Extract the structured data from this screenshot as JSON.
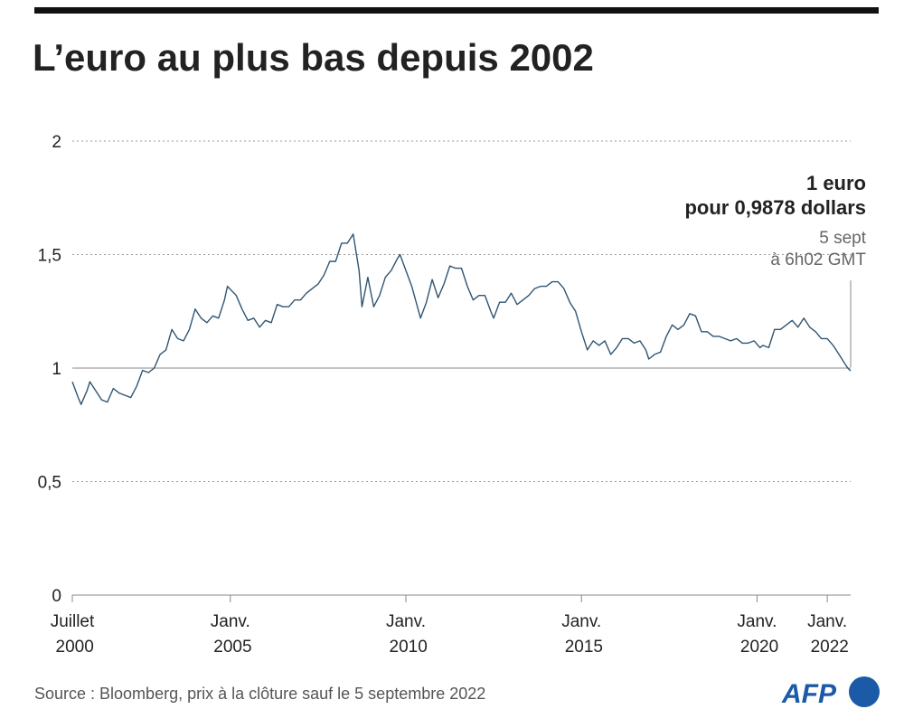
{
  "chart_data": {
    "type": "line",
    "title": "L’euro au plus bas depuis 2002",
    "source": "Source : Bloomberg, prix à la clôture sauf le 5 septembre 2022",
    "logo": "AFP",
    "annotation": {
      "title": [
        "1 euro",
        "pour 0,9878 dollars"
      ],
      "note": [
        "5 sept",
        "à 6h02 GMT"
      ]
    },
    "x": [
      "2000-07",
      "2000-09",
      "2000-10",
      "2000-12",
      "2001-01",
      "2001-03",
      "2001-05",
      "2001-07",
      "2001-09",
      "2001-11",
      "2002-01",
      "2002-03",
      "2002-05",
      "2002-07",
      "2002-09",
      "2002-11",
      "2003-01",
      "2003-03",
      "2003-05",
      "2003-07",
      "2003-09",
      "2003-11",
      "2004-01",
      "2004-03",
      "2004-05",
      "2004-07",
      "2004-09",
      "2004-11",
      "2004-12",
      "2005-03",
      "2005-05",
      "2005-07",
      "2005-09",
      "2005-11",
      "2006-01",
      "2006-03",
      "2006-05",
      "2006-07",
      "2006-09",
      "2006-11",
      "2007-01",
      "2007-03",
      "2007-05",
      "2007-07",
      "2007-09",
      "2007-11",
      "2008-01",
      "2008-03",
      "2008-05",
      "2008-07",
      "2008-09",
      "2008-10",
      "2008-12",
      "2009-02",
      "2009-04",
      "2009-06",
      "2009-08",
      "2009-10",
      "2009-11",
      "2010-01",
      "2010-03",
      "2010-06",
      "2010-08",
      "2010-10",
      "2010-12",
      "2011-02",
      "2011-04",
      "2011-06",
      "2011-08",
      "2011-10",
      "2011-12",
      "2012-02",
      "2012-04",
      "2012-06",
      "2012-07",
      "2012-09",
      "2012-11",
      "2013-01",
      "2013-03",
      "2013-05",
      "2013-07",
      "2013-09",
      "2013-11",
      "2014-01",
      "2014-03",
      "2014-05",
      "2014-07",
      "2014-09",
      "2014-11",
      "2015-01",
      "2015-03",
      "2015-05",
      "2015-07",
      "2015-09",
      "2015-11",
      "2016-01",
      "2016-03",
      "2016-05",
      "2016-07",
      "2016-09",
      "2016-11",
      "2016-12",
      "2017-02",
      "2017-04",
      "2017-06",
      "2017-08",
      "2017-10",
      "2017-12",
      "2018-02",
      "2018-04",
      "2018-06",
      "2018-08",
      "2018-10",
      "2018-12",
      "2019-02",
      "2019-04",
      "2019-06",
      "2019-08",
      "2019-10",
      "2019-12",
      "2020-02",
      "2020-03",
      "2020-05",
      "2020-07",
      "2020-09",
      "2020-11",
      "2021-01",
      "2021-03",
      "2021-05",
      "2021-07",
      "2021-09",
      "2021-11",
      "2022-01",
      "2022-03",
      "2022-05",
      "2022-07",
      "2022-08",
      "2022-09"
    ],
    "series": [
      {
        "color": "#2f5573",
        "values": [
          0.94,
          0.87,
          0.84,
          0.9,
          0.94,
          0.9,
          0.86,
          0.85,
          0.91,
          0.89,
          0.88,
          0.87,
          0.92,
          0.99,
          0.98,
          1.0,
          1.06,
          1.08,
          1.17,
          1.13,
          1.12,
          1.17,
          1.26,
          1.22,
          1.2,
          1.23,
          1.22,
          1.3,
          1.36,
          1.32,
          1.26,
          1.21,
          1.22,
          1.18,
          1.21,
          1.2,
          1.28,
          1.27,
          1.27,
          1.3,
          1.3,
          1.33,
          1.35,
          1.37,
          1.41,
          1.47,
          1.47,
          1.55,
          1.55,
          1.59,
          1.43,
          1.27,
          1.4,
          1.27,
          1.32,
          1.4,
          1.43,
          1.48,
          1.5,
          1.43,
          1.36,
          1.22,
          1.29,
          1.39,
          1.31,
          1.37,
          1.45,
          1.44,
          1.44,
          1.36,
          1.3,
          1.32,
          1.32,
          1.25,
          1.22,
          1.29,
          1.29,
          1.33,
          1.28,
          1.3,
          1.32,
          1.35,
          1.36,
          1.36,
          1.38,
          1.38,
          1.35,
          1.29,
          1.25,
          1.16,
          1.08,
          1.12,
          1.1,
          1.12,
          1.06,
          1.09,
          1.13,
          1.13,
          1.11,
          1.12,
          1.08,
          1.04,
          1.06,
          1.07,
          1.14,
          1.19,
          1.17,
          1.19,
          1.24,
          1.23,
          1.16,
          1.16,
          1.14,
          1.14,
          1.13,
          1.12,
          1.13,
          1.11,
          1.11,
          1.12,
          1.09,
          1.1,
          1.09,
          1.17,
          1.17,
          1.19,
          1.21,
          1.18,
          1.22,
          1.18,
          1.16,
          1.13,
          1.13,
          1.1,
          1.06,
          1.02,
          1.0,
          0.9878
        ]
      }
    ],
    "xlim": [
      "2000-07",
      "2022-09"
    ],
    "xticks": [
      {
        "value": "2000-07",
        "label": "Juillet 2000"
      },
      {
        "value": "2005-01",
        "label": "Janv. 2005"
      },
      {
        "value": "2010-01",
        "label": "Janv. 2010"
      },
      {
        "value": "2015-01",
        "label": "Janv. 2015"
      },
      {
        "value": "2020-01",
        "label": "Janv. 2020"
      },
      {
        "value": "2022-01",
        "label": "Janv. 2022"
      }
    ],
    "ylim": [
      0,
      2
    ],
    "yticks": [
      0,
      {
        "value": 0.5,
        "label": "0,5"
      },
      1,
      {
        "value": 1.5,
        "label": "1,5"
      },
      2
    ],
    "grid": true,
    "reference_line": 1
  }
}
